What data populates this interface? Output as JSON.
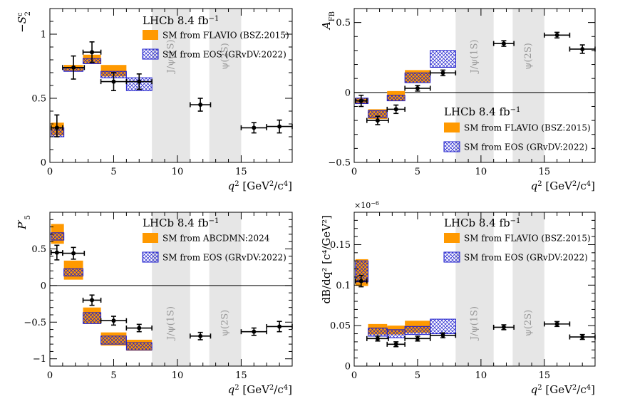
{
  "figure": {
    "experiment_label": "LHCb 8.4 fb",
    "experiment_label_sup": "−1",
    "xlabel_main": "q",
    "xlabel_unit": "[GeV",
    "xlabel_unit2": "/c",
    "xlabel_unit3": "]",
    "veto_labels": [
      "J/ψ(1S)",
      "ψ(2S)"
    ],
    "colors": {
      "data": "#000000",
      "flavio_fill": "#ff9900",
      "eos_stroke": "#1a1acc",
      "eos_hatch": "#1a1acc",
      "veto_band": "#e6e6e6",
      "zero_line": "#000000"
    }
  },
  "chart_data": [
    {
      "type": "scatter",
      "panel": "top-left",
      "ylabel": "−S",
      "ylabel_sub": "2",
      "ylabel_sup": "c",
      "xlim": [
        0,
        19
      ],
      "ylim": [
        0,
        1.2
      ],
      "yticks": [
        0,
        0.5,
        1
      ],
      "ytick_labels": [
        "0",
        "0.5",
        "1"
      ],
      "xticks": [
        0,
        5,
        10,
        15
      ],
      "xtick_labels": [
        "0",
        "5",
        "10",
        "15"
      ],
      "zero_line": false,
      "legend_position": "top-right",
      "legend": [
        "SM from FLAVIO (BSZ:2015)",
        "SM from EOS (GRvDV:2022)"
      ],
      "veto_regions": [
        [
          8,
          11
        ],
        [
          12.5,
          15
        ]
      ],
      "data_points": [
        {
          "x": 0.55,
          "xerr": [
            0.45,
            0.45
          ],
          "y": 0.27,
          "yerr": [
            0.07,
            0.1
          ]
        },
        {
          "x": 1.85,
          "xerr": [
            0.85,
            0.85
          ],
          "y": 0.74,
          "yerr": [
            0.09,
            0.09
          ]
        },
        {
          "x": 3.3,
          "xerr": [
            0.7,
            0.7
          ],
          "y": 0.86,
          "yerr": [
            0.08,
            0.08
          ]
        },
        {
          "x": 5.0,
          "xerr": [
            1.0,
            1.0
          ],
          "y": 0.63,
          "yerr": [
            0.07,
            0.07
          ]
        },
        {
          "x": 7.0,
          "xerr": [
            1.0,
            1.0
          ],
          "y": 0.63,
          "yerr": [
            0.06,
            0.06
          ]
        },
        {
          "x": 11.8,
          "xerr": [
            0.8,
            0.8
          ],
          "y": 0.45,
          "yerr": [
            0.05,
            0.05
          ]
        },
        {
          "x": 16.0,
          "xerr": [
            1.0,
            1.0
          ],
          "y": 0.27,
          "yerr": [
            0.04,
            0.04
          ]
        },
        {
          "x": 18.0,
          "xerr": [
            1.0,
            1.0
          ],
          "y": 0.28,
          "yerr": [
            0.05,
            0.05
          ]
        }
      ],
      "flavio_boxes": [
        {
          "x": [
            0.1,
            1.1
          ],
          "y": [
            0.21,
            0.31
          ]
        },
        {
          "x": [
            1.1,
            2.6
          ],
          "y": [
            0.71,
            0.76
          ]
        },
        {
          "x": [
            2.6,
            4.0
          ],
          "y": [
            0.77,
            0.84
          ]
        },
        {
          "x": [
            4.0,
            6.0
          ],
          "y": [
            0.67,
            0.76
          ]
        }
      ],
      "eos_boxes": [
        {
          "x": [
            0.1,
            1.1
          ],
          "y": [
            0.2,
            0.27
          ]
        },
        {
          "x": [
            1.1,
            2.6
          ],
          "y": [
            0.71,
            0.74
          ]
        },
        {
          "x": [
            2.6,
            4.0
          ],
          "y": [
            0.77,
            0.81
          ]
        },
        {
          "x": [
            4.0,
            6.0
          ],
          "y": [
            0.66,
            0.71
          ]
        },
        {
          "x": [
            6.0,
            8.0
          ],
          "y": [
            0.56,
            0.66
          ]
        }
      ]
    },
    {
      "type": "scatter",
      "panel": "top-right",
      "ylabel": "A",
      "ylabel_sub": "FB",
      "ylabel_sup": "",
      "xlim": [
        0,
        19
      ],
      "ylim": [
        -0.5,
        0.6
      ],
      "yticks": [
        -0.5,
        0,
        0.5
      ],
      "ytick_labels": [
        "−0.5",
        "0",
        "0.5"
      ],
      "xticks": [
        0,
        5,
        10,
        15
      ],
      "xtick_labels": [
        "0",
        "5",
        "10",
        "15"
      ],
      "zero_line": true,
      "legend_position": "center-right",
      "legend": [
        "SM from FLAVIO (BSZ:2015)",
        "SM from EOS (GRvDV:2022)"
      ],
      "veto_regions": [
        [
          8,
          11
        ],
        [
          12.5,
          15
        ]
      ],
      "data_points": [
        {
          "x": 0.55,
          "xerr": [
            0.45,
            0.45
          ],
          "y": -0.06,
          "yerr": [
            0.04,
            0.04
          ]
        },
        {
          "x": 1.85,
          "xerr": [
            0.85,
            0.85
          ],
          "y": -0.2,
          "yerr": [
            0.03,
            0.03
          ]
        },
        {
          "x": 3.3,
          "xerr": [
            0.7,
            0.7
          ],
          "y": -0.12,
          "yerr": [
            0.03,
            0.03
          ]
        },
        {
          "x": 5.0,
          "xerr": [
            1.0,
            1.0
          ],
          "y": 0.03,
          "yerr": [
            0.02,
            0.02
          ]
        },
        {
          "x": 7.0,
          "xerr": [
            1.0,
            1.0
          ],
          "y": 0.14,
          "yerr": [
            0.02,
            0.02
          ]
        },
        {
          "x": 11.8,
          "xerr": [
            0.8,
            0.8
          ],
          "y": 0.35,
          "yerr": [
            0.02,
            0.02
          ]
        },
        {
          "x": 16.0,
          "xerr": [
            1.0,
            1.0
          ],
          "y": 0.41,
          "yerr": [
            0.02,
            0.02
          ]
        },
        {
          "x": 18.0,
          "xerr": [
            1.0,
            1.0
          ],
          "y": 0.31,
          "yerr": [
            0.03,
            0.03
          ]
        }
      ],
      "flavio_boxes": [
        {
          "x": [
            0.1,
            1.1
          ],
          "y": [
            -0.08,
            -0.04
          ]
        },
        {
          "x": [
            1.1,
            2.6
          ],
          "y": [
            -0.19,
            -0.12
          ]
        },
        {
          "x": [
            2.6,
            4.0
          ],
          "y": [
            -0.06,
            0.01
          ]
        },
        {
          "x": [
            4.0,
            6.0
          ],
          "y": [
            0.07,
            0.16
          ]
        }
      ],
      "eos_boxes": [
        {
          "x": [
            0.1,
            1.1
          ],
          "y": [
            -0.08,
            -0.04
          ]
        },
        {
          "x": [
            1.1,
            2.6
          ],
          "y": [
            -0.18,
            -0.13
          ]
        },
        {
          "x": [
            2.6,
            4.0
          ],
          "y": [
            -0.06,
            -0.02
          ]
        },
        {
          "x": [
            4.0,
            6.0
          ],
          "y": [
            0.07,
            0.14
          ]
        },
        {
          "x": [
            6.0,
            8.0
          ],
          "y": [
            0.18,
            0.3
          ]
        }
      ]
    },
    {
      "type": "scatter",
      "panel": "bottom-left",
      "ylabel": "P′",
      "ylabel_sub": "5",
      "ylabel_sup": "",
      "xlim": [
        0,
        19
      ],
      "ylim": [
        -1.1,
        1.0
      ],
      "yticks": [
        -1,
        -0.5,
        0,
        0.5
      ],
      "ytick_labels": [
        "−1",
        "−0.5",
        "0",
        "0.5"
      ],
      "xticks": [
        0,
        5,
        10,
        15
      ],
      "xtick_labels": [
        "0",
        "5",
        "10",
        "15"
      ],
      "zero_line": true,
      "legend_position": "top-right",
      "legend": [
        "SM from ABCDMN:2024",
        "SM from EOS (GRvDV:2022)"
      ],
      "veto_regions": [
        [
          8,
          11
        ],
        [
          12.5,
          15
        ]
      ],
      "data_points": [
        {
          "x": 0.55,
          "xerr": [
            0.45,
            0.45
          ],
          "y": 0.45,
          "yerr": [
            0.1,
            0.1
          ]
        },
        {
          "x": 1.85,
          "xerr": [
            0.85,
            0.85
          ],
          "y": 0.44,
          "yerr": [
            0.08,
            0.08
          ]
        },
        {
          "x": 3.3,
          "xerr": [
            0.7,
            0.7
          ],
          "y": -0.2,
          "yerr": [
            0.07,
            0.07
          ]
        },
        {
          "x": 5.0,
          "xerr": [
            1.0,
            1.0
          ],
          "y": -0.48,
          "yerr": [
            0.06,
            0.06
          ]
        },
        {
          "x": 7.0,
          "xerr": [
            1.0,
            1.0
          ],
          "y": -0.58,
          "yerr": [
            0.05,
            0.05
          ]
        },
        {
          "x": 11.8,
          "xerr": [
            0.8,
            0.8
          ],
          "y": -0.69,
          "yerr": [
            0.05,
            0.05
          ]
        },
        {
          "x": 16.0,
          "xerr": [
            1.0,
            1.0
          ],
          "y": -0.63,
          "yerr": [
            0.05,
            0.05
          ]
        },
        {
          "x": 18.0,
          "xerr": [
            1.0,
            1.0
          ],
          "y": -0.56,
          "yerr": [
            0.07,
            0.07
          ]
        }
      ],
      "flavio_boxes": [
        {
          "x": [
            0.1,
            1.1
          ],
          "y": [
            0.57,
            0.84
          ]
        },
        {
          "x": [
            1.1,
            2.6
          ],
          "y": [
            0.08,
            0.34
          ]
        },
        {
          "x": [
            2.6,
            4.0
          ],
          "y": [
            -0.52,
            -0.3
          ]
        },
        {
          "x": [
            4.0,
            6.0
          ],
          "y": [
            -0.82,
            -0.64
          ]
        },
        {
          "x": [
            6.0,
            8.0
          ],
          "y": [
            -0.89,
            -0.74
          ]
        }
      ],
      "eos_boxes": [
        {
          "x": [
            0.1,
            1.1
          ],
          "y": [
            0.62,
            0.72
          ]
        },
        {
          "x": [
            1.1,
            2.6
          ],
          "y": [
            0.13,
            0.23
          ]
        },
        {
          "x": [
            2.6,
            4.0
          ],
          "y": [
            -0.52,
            -0.37
          ]
        },
        {
          "x": [
            4.0,
            6.0
          ],
          "y": [
            -0.8,
            -0.69
          ]
        },
        {
          "x": [
            6.0,
            8.0
          ],
          "y": [
            -0.88,
            -0.78
          ]
        }
      ]
    },
    {
      "type": "scatter",
      "panel": "bottom-right",
      "ylabel": "dB/dq² [c⁴/GeV²]",
      "ylabel_sub": "",
      "ylabel_sup": "",
      "axis_multiplier": "×10",
      "axis_multiplier_exp": "−6",
      "xlim": [
        0,
        19
      ],
      "ylim": [
        0,
        0.19
      ],
      "yticks": [
        0,
        0.05,
        0.1,
        0.15
      ],
      "ytick_labels": [
        "0",
        "0.05",
        "0.1",
        "0.15"
      ],
      "xticks": [
        0,
        5,
        10,
        15
      ],
      "xtick_labels": [
        "0",
        "5",
        "10",
        "15"
      ],
      "zero_line": false,
      "legend_position": "top-right",
      "legend": [
        "SM from FLAVIO (BSZ:2015)",
        "SM from EOS (GRvDV:2022)"
      ],
      "veto_regions": [
        [
          8,
          11
        ],
        [
          12.5,
          15
        ]
      ],
      "data_points": [
        {
          "x": 0.55,
          "xerr": [
            0.45,
            0.45
          ],
          "y": 0.105,
          "yerr": [
            0.007,
            0.007
          ]
        },
        {
          "x": 1.85,
          "xerr": [
            0.85,
            0.85
          ],
          "y": 0.034,
          "yerr": [
            0.003,
            0.003
          ]
        },
        {
          "x": 3.3,
          "xerr": [
            0.7,
            0.7
          ],
          "y": 0.027,
          "yerr": [
            0.003,
            0.003
          ]
        },
        {
          "x": 5.0,
          "xerr": [
            1.0,
            1.0
          ],
          "y": 0.034,
          "yerr": [
            0.003,
            0.003
          ]
        },
        {
          "x": 7.0,
          "xerr": [
            1.0,
            1.0
          ],
          "y": 0.038,
          "yerr": [
            0.003,
            0.003
          ]
        },
        {
          "x": 11.8,
          "xerr": [
            0.8,
            0.8
          ],
          "y": 0.048,
          "yerr": [
            0.003,
            0.003
          ]
        },
        {
          "x": 16.0,
          "xerr": [
            1.0,
            1.0
          ],
          "y": 0.052,
          "yerr": [
            0.003,
            0.003
          ]
        },
        {
          "x": 18.0,
          "xerr": [
            1.0,
            1.0
          ],
          "y": 0.036,
          "yerr": [
            0.003,
            0.003
          ]
        }
      ],
      "flavio_boxes": [
        {
          "x": [
            0.1,
            1.1
          ],
          "y": [
            0.099,
            0.132
          ]
        },
        {
          "x": [
            1.1,
            2.6
          ],
          "y": [
            0.039,
            0.052
          ]
        },
        {
          "x": [
            2.6,
            4.0
          ],
          "y": [
            0.039,
            0.05
          ]
        },
        {
          "x": [
            4.0,
            6.0
          ],
          "y": [
            0.041,
            0.056
          ]
        }
      ],
      "eos_boxes": [
        {
          "x": [
            0.1,
            1.1
          ],
          "y": [
            0.104,
            0.13
          ]
        },
        {
          "x": [
            1.1,
            2.6
          ],
          "y": [
            0.037,
            0.047
          ]
        },
        {
          "x": [
            2.6,
            4.0
          ],
          "y": [
            0.035,
            0.045
          ]
        },
        {
          "x": [
            4.0,
            6.0
          ],
          "y": [
            0.039,
            0.049
          ]
        },
        {
          "x": [
            6.0,
            8.0
          ],
          "y": [
            0.04,
            0.058
          ]
        }
      ]
    }
  ]
}
